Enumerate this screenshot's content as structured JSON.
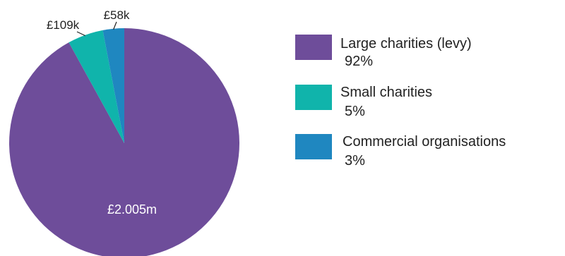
{
  "chart_data": {
    "type": "pie",
    "title": "",
    "slices": [
      {
        "name": "Large charities (levy)",
        "percent": "92%",
        "value": 92,
        "label": "£2.005m",
        "color": "#6e4d9a"
      },
      {
        "name": "Small charities",
        "percent": "5%",
        "value": 5,
        "label": "£109k",
        "color": "#10b4ab"
      },
      {
        "name": "Commercial organisations",
        "percent": "3%",
        "value": 3,
        "label": "£58k",
        "color": "#1f87c0"
      }
    ],
    "legend_position": "right"
  }
}
